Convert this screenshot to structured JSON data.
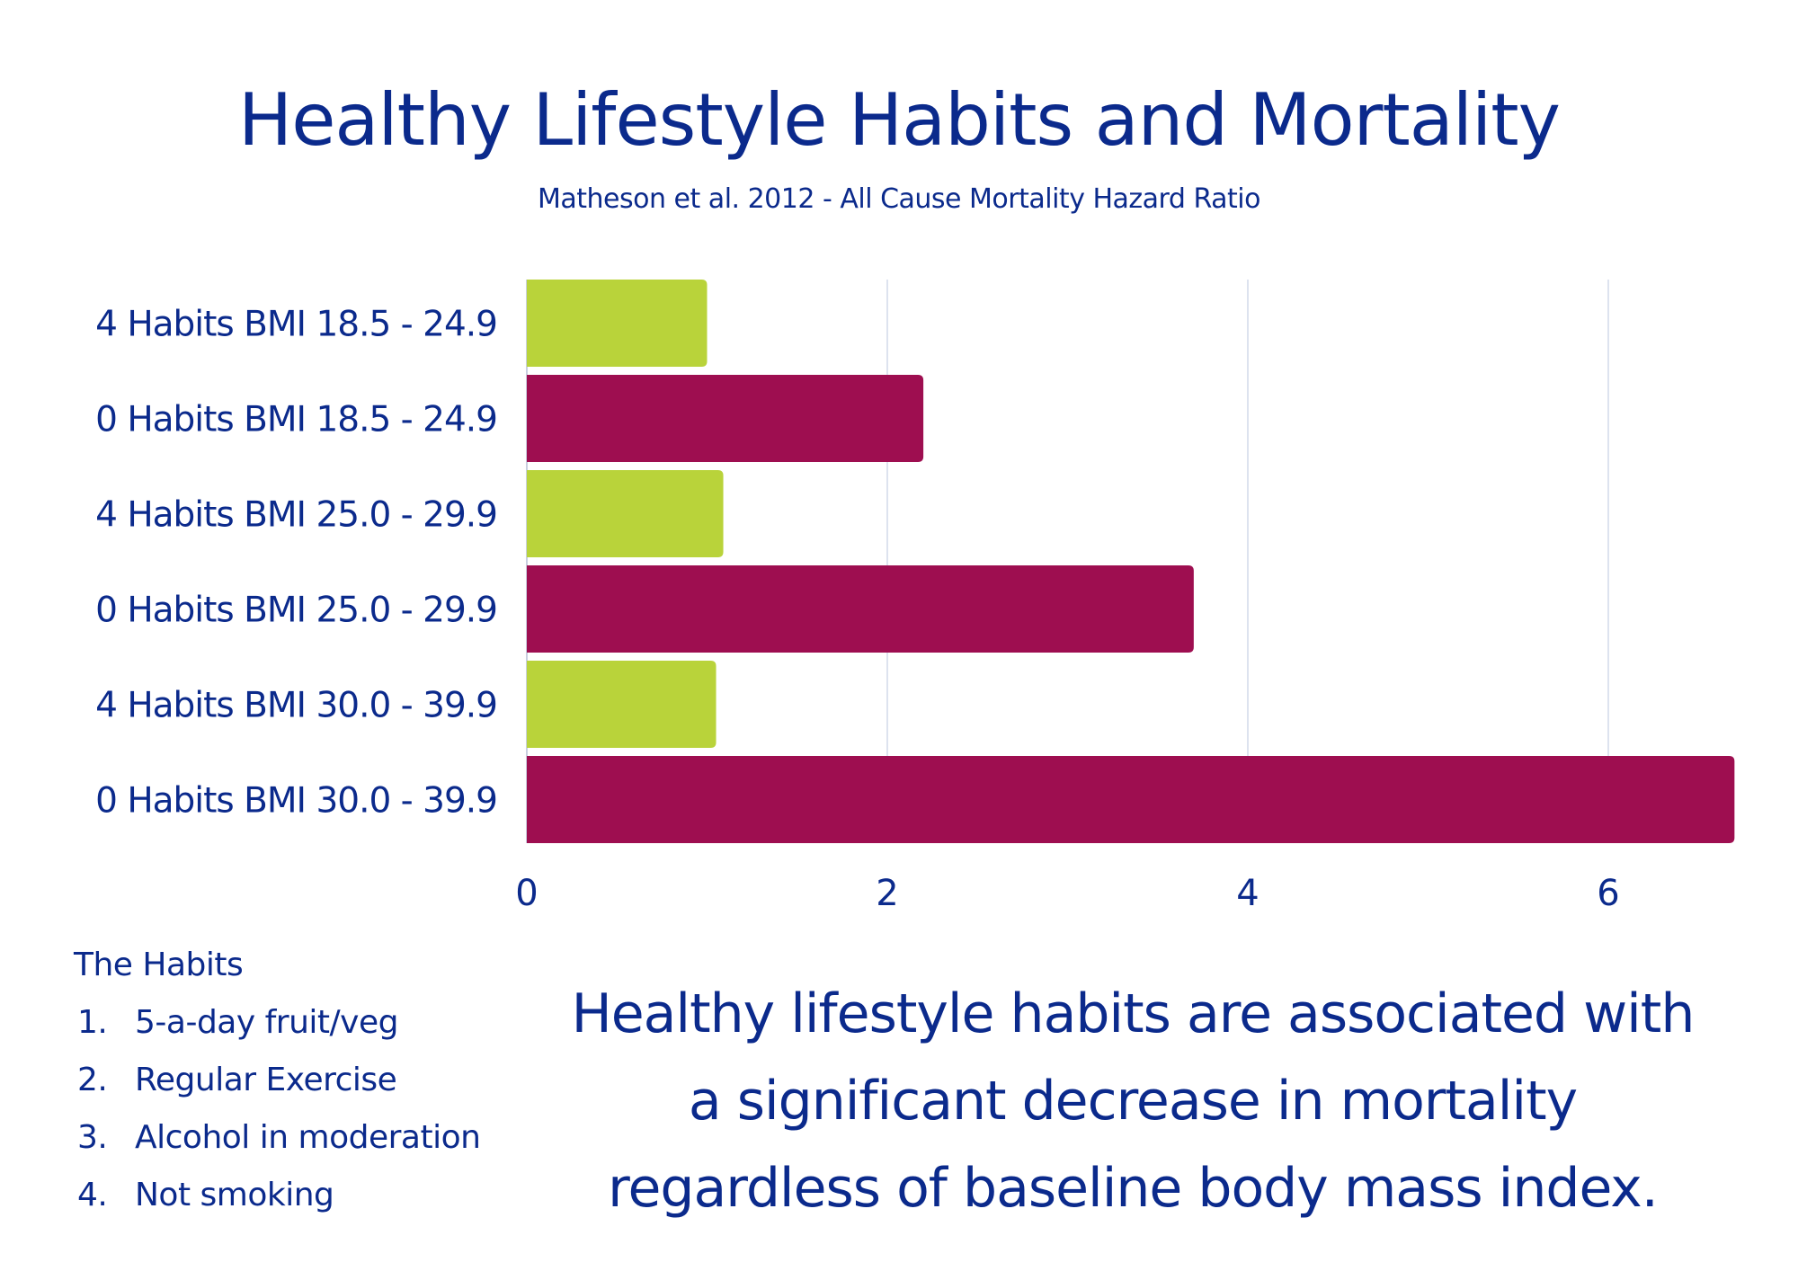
{
  "colors": {
    "text": "#0b2a8c",
    "bar_4_habits": "#b9d33a",
    "bar_0_habits": "#9e0e50",
    "gridline": "#dde3ef"
  },
  "chart_data": {
    "type": "bar",
    "orientation": "horizontal",
    "title": "Healthy Lifestyle Habits and Mortality",
    "subtitle": "Matheson et al. 2012 - All Cause Mortality Hazard Ratio",
    "xlabel": "",
    "ylabel": "",
    "categories": [
      "4 Habits BMI 18.5 - 24.9",
      "0 Habits BMI 18.5 - 24.9",
      "4 Habits BMI 25.0 - 29.9",
      "0 Habits BMI 25.0 - 29.9",
      "4 Habits BMI 30.0 - 39.9",
      "0 Habits BMI 30.0 - 39.9"
    ],
    "values": [
      1.0,
      2.2,
      1.09,
      3.7,
      1.05,
      6.7
    ],
    "bar_groups": [
      "4 Habits",
      "0 Habits",
      "4 Habits",
      "0 Habits",
      "4 Habits",
      "0 Habits"
    ],
    "xlim": [
      0,
      6.9
    ],
    "xticks": [
      0,
      2,
      4,
      6
    ],
    "xtick_labels": [
      "0",
      "2",
      "4",
      "6"
    ],
    "grid": "vertical",
    "legend": "none"
  },
  "habits": {
    "heading": "The Habits",
    "items": [
      {
        "num": "1.",
        "label": "5-a-day fruit/veg"
      },
      {
        "num": "2.",
        "label": "Regular Exercise"
      },
      {
        "num": "3.",
        "label": "Alcohol in moderation"
      },
      {
        "num": "4.",
        "label": "Not smoking"
      }
    ]
  },
  "statement": {
    "lines": [
      "Healthy lifestyle habits are associated with",
      "a significant decrease in mortality",
      "regardless of baseline body mass index."
    ]
  }
}
